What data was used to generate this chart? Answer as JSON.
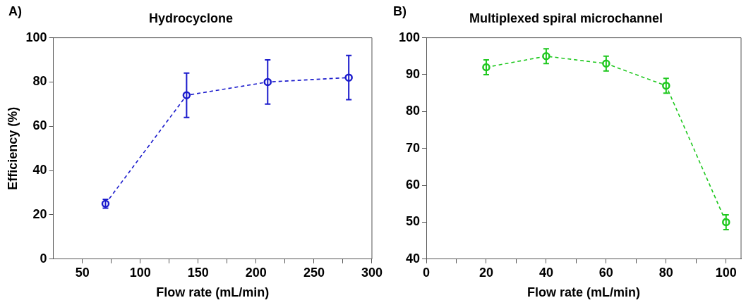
{
  "chart_data": [
    {
      "type": "line",
      "title": "Hydrocyclone",
      "xlabel": "Flow rate (mL/min)",
      "ylabel": "Efficiency (%)",
      "annotations": [
        "A)"
      ],
      "x": [
        70,
        140,
        210,
        280
      ],
      "series": [
        {
          "color": "#1a1acc",
          "values": [
            25,
            74,
            80,
            82
          ],
          "errors": [
            2,
            10,
            10,
            10
          ]
        }
      ],
      "xlim": [
        25,
        300
      ],
      "xticks": [
        50,
        {
          "value": 75,
          "label": null
        },
        100,
        {
          "value": 125,
          "label": null
        },
        150,
        {
          "value": 175,
          "label": null
        },
        200,
        {
          "value": 225,
          "label": null
        },
        250,
        {
          "value": 275,
          "label": null
        },
        300
      ],
      "ylim": [
        0,
        100
      ],
      "yticks": [
        0,
        20,
        40,
        60,
        80,
        100
      ],
      "legend": false,
      "marker": "circle",
      "line_style": "dashed"
    },
    {
      "type": "line",
      "title": "Multiplexed spiral microchannel",
      "xlabel": "Flow rate (mL/min)",
      "annotations": [
        "B)"
      ],
      "x": [
        20,
        40,
        60,
        80,
        100
      ],
      "series": [
        {
          "color": "#1ec81e",
          "values": [
            92,
            95,
            93,
            87,
            50
          ],
          "errors": [
            2,
            2,
            2,
            2,
            2
          ]
        }
      ],
      "xlim": [
        0,
        105
      ],
      "xticks": [
        0,
        {
          "value": 10,
          "label": null
        },
        20,
        {
          "value": 30,
          "label": null
        },
        40,
        {
          "value": 50,
          "label": null
        },
        60,
        {
          "value": 70,
          "label": null
        },
        80,
        {
          "value": 90,
          "label": null
        },
        100
      ],
      "ylim": [
        40,
        100
      ],
      "yticks": [
        40,
        50,
        60,
        70,
        80,
        90,
        100
      ],
      "legend": false,
      "marker": "circle",
      "line_style": "dashed"
    }
  ]
}
